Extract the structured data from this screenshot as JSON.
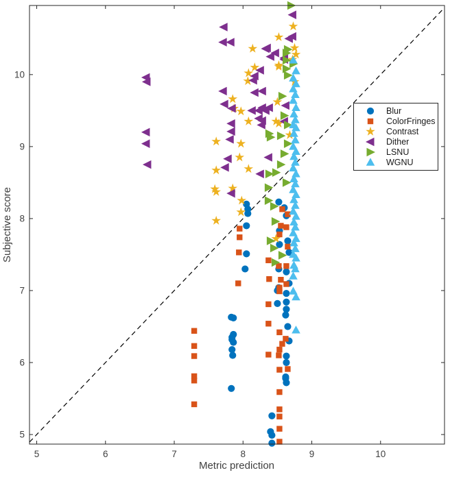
{
  "figure": {
    "background": "#ffffff",
    "axis_color": "#262626",
    "tick_label_color": "#3f3f3f",
    "reference_line_color": "#000000"
  },
  "chart_data": {
    "type": "scatter",
    "title": "",
    "xlabel": "Metric prediction",
    "ylabel": "Subjective score",
    "xlim": [
      4.895,
      10.93
    ],
    "ylim": [
      4.867,
      10.96
    ],
    "xticks": [
      5,
      6,
      7,
      8,
      9,
      10
    ],
    "yticks": [
      5,
      6,
      7,
      8,
      9,
      10
    ],
    "grid": false,
    "legend_position": "right-middle",
    "reference_line": {
      "style": "dashed",
      "equation": "y = x",
      "from": [
        4.895,
        4.895
      ],
      "to": [
        10.93,
        10.93
      ]
    },
    "series": [
      {
        "name": "Blur",
        "marker": "circle",
        "color": "#0072BD",
        "points": [
          [
            8.52,
            8.23
          ],
          [
            8.6,
            8.15
          ],
          [
            8.63,
            8.04
          ],
          [
            8.05,
            8.2
          ],
          [
            8.07,
            8.13
          ],
          [
            8.07,
            8.07
          ],
          [
            8.53,
            7.83
          ],
          [
            8.05,
            7.9
          ],
          [
            8.65,
            7.69
          ],
          [
            8.53,
            7.64
          ],
          [
            8.67,
            7.53
          ],
          [
            8.05,
            7.51
          ],
          [
            8.52,
            7.3
          ],
          [
            8.63,
            7.26
          ],
          [
            8.03,
            7.3
          ],
          [
            8.67,
            7.1
          ],
          [
            8.52,
            7.04
          ],
          [
            8.5,
            7.0
          ],
          [
            8.63,
            6.96
          ],
          [
            8.63,
            6.84
          ],
          [
            8.5,
            6.82
          ],
          [
            8.63,
            6.74
          ],
          [
            8.62,
            6.66
          ],
          [
            7.83,
            6.63
          ],
          [
            7.86,
            6.62
          ],
          [
            8.65,
            6.5
          ],
          [
            7.86,
            6.39
          ],
          [
            7.84,
            6.35
          ],
          [
            7.84,
            6.32
          ],
          [
            8.67,
            6.3
          ],
          [
            7.86,
            6.28
          ],
          [
            7.84,
            6.18
          ],
          [
            8.63,
            6.09
          ],
          [
            7.85,
            6.1
          ],
          [
            8.63,
            6.0
          ],
          [
            8.62,
            5.8
          ],
          [
            8.62,
            5.78
          ],
          [
            8.63,
            5.72
          ],
          [
            7.83,
            5.64
          ],
          [
            8.42,
            5.26
          ],
          [
            8.4,
            5.04
          ],
          [
            8.42,
            4.99
          ],
          [
            8.42,
            4.88
          ]
        ]
      },
      {
        "name": "ColorFringes",
        "marker": "square",
        "color": "#D95319",
        "points": [
          [
            7.95,
            7.86
          ],
          [
            7.95,
            7.74
          ],
          [
            7.94,
            7.53
          ],
          [
            7.93,
            7.1
          ],
          [
            8.57,
            8.13
          ],
          [
            8.65,
            8.06
          ],
          [
            8.55,
            7.9
          ],
          [
            8.63,
            7.88
          ],
          [
            8.53,
            7.78
          ],
          [
            8.65,
            7.61
          ],
          [
            8.37,
            7.42
          ],
          [
            8.52,
            7.34
          ],
          [
            8.63,
            7.34
          ],
          [
            8.38,
            7.16
          ],
          [
            8.55,
            7.15
          ],
          [
            8.63,
            7.09
          ],
          [
            8.53,
            7.04
          ],
          [
            8.53,
            6.99
          ],
          [
            8.37,
            6.81
          ],
          [
            8.37,
            6.54
          ],
          [
            8.53,
            6.42
          ],
          [
            8.62,
            6.33
          ],
          [
            8.57,
            6.26
          ],
          [
            8.53,
            6.18
          ],
          [
            8.37,
            6.11
          ],
          [
            8.52,
            6.1
          ],
          [
            8.65,
            5.91
          ],
          [
            8.53,
            5.9
          ],
          [
            8.53,
            5.59
          ],
          [
            8.53,
            5.35
          ],
          [
            8.53,
            5.25
          ],
          [
            8.53,
            5.08
          ],
          [
            8.53,
            4.9
          ],
          [
            7.29,
            6.44
          ],
          [
            7.29,
            6.23
          ],
          [
            7.29,
            6.09
          ],
          [
            7.29,
            5.81
          ],
          [
            7.29,
            5.75
          ],
          [
            7.29,
            5.42
          ]
        ]
      },
      {
        "name": "Contrast",
        "marker": "star",
        "color": "#EDB120",
        "points": [
          [
            8.73,
            10.67
          ],
          [
            8.52,
            10.52
          ],
          [
            8.14,
            10.36
          ],
          [
            8.75,
            10.37
          ],
          [
            8.77,
            10.28
          ],
          [
            8.72,
            10.21
          ],
          [
            8.52,
            10.13
          ],
          [
            8.17,
            10.1
          ],
          [
            8.08,
            10.02
          ],
          [
            8.07,
            9.91
          ],
          [
            8.75,
            9.9
          ],
          [
            7.85,
            9.66
          ],
          [
            8.5,
            9.62
          ],
          [
            7.87,
            9.53
          ],
          [
            7.97,
            9.49
          ],
          [
            8.08,
            9.35
          ],
          [
            8.48,
            9.35
          ],
          [
            8.52,
            9.32
          ],
          [
            8.68,
            9.16
          ],
          [
            7.61,
            9.07
          ],
          [
            7.97,
            9.04
          ],
          [
            7.95,
            8.85
          ],
          [
            8.08,
            8.69
          ],
          [
            7.61,
            8.67
          ],
          [
            7.59,
            8.41
          ],
          [
            7.85,
            8.42
          ],
          [
            7.61,
            8.37
          ],
          [
            7.98,
            8.25
          ],
          [
            7.97,
            8.09
          ],
          [
            7.61,
            7.97
          ],
          [
            8.48,
            7.72
          ],
          [
            8.52,
            10.11
          ]
        ]
      },
      {
        "name": "Dither",
        "marker": "triangle-left",
        "color": "#7E2F8E",
        "points": [
          [
            6.59,
            9.96
          ],
          [
            6.6,
            9.9
          ],
          [
            6.59,
            9.2
          ],
          [
            6.59,
            9.04
          ],
          [
            6.61,
            8.75
          ],
          [
            8.72,
            10.83
          ],
          [
            7.72,
            10.66
          ],
          [
            8.72,
            10.53
          ],
          [
            8.67,
            10.5
          ],
          [
            7.71,
            10.45
          ],
          [
            7.82,
            10.45
          ],
          [
            8.33,
            10.36
          ],
          [
            8.35,
            10.37
          ],
          [
            8.47,
            10.3
          ],
          [
            8.4,
            10.25
          ],
          [
            8.6,
            10.23
          ],
          [
            8.6,
            10.21
          ],
          [
            8.25,
            10.06
          ],
          [
            8.17,
            9.98
          ],
          [
            8.15,
            9.92
          ],
          [
            7.71,
            9.77
          ],
          [
            8.28,
            9.77
          ],
          [
            8.17,
            9.75
          ],
          [
            7.73,
            9.59
          ],
          [
            8.62,
            9.57
          ],
          [
            7.84,
            9.53
          ],
          [
            8.13,
            9.5
          ],
          [
            8.23,
            9.5
          ],
          [
            8.33,
            9.5
          ],
          [
            8.23,
            9.39
          ],
          [
            8.28,
            9.36
          ],
          [
            8.6,
            9.35
          ],
          [
            8.27,
            9.3
          ],
          [
            7.83,
            9.32
          ],
          [
            7.83,
            9.21
          ],
          [
            7.81,
            9.1
          ],
          [
            8.28,
            9.54
          ],
          [
            8.38,
            9.54
          ],
          [
            8.37,
            8.85
          ],
          [
            7.78,
            8.83
          ],
          [
            7.74,
            8.71
          ],
          [
            8.25,
            8.62
          ],
          [
            7.83,
            8.35
          ]
        ]
      },
      {
        "name": "LSNU",
        "marker": "triangle-right",
        "color": "#77AC30",
        "points": [
          [
            8.7,
            10.96
          ],
          [
            8.65,
            10.35
          ],
          [
            8.63,
            10.3
          ],
          [
            8.63,
            10.2
          ],
          [
            8.73,
            10.15
          ],
          [
            8.63,
            10.08
          ],
          [
            8.65,
            9.99
          ],
          [
            8.57,
            9.7
          ],
          [
            8.6,
            9.43
          ],
          [
            8.65,
            9.3
          ],
          [
            8.4,
            9.13
          ],
          [
            8.38,
            9.18
          ],
          [
            8.55,
            9.15
          ],
          [
            8.65,
            9.04
          ],
          [
            8.6,
            8.9
          ],
          [
            8.55,
            8.75
          ],
          [
            8.48,
            8.64
          ],
          [
            8.38,
            8.62
          ],
          [
            8.63,
            8.5
          ],
          [
            8.37,
            8.43
          ],
          [
            8.37,
            8.25
          ],
          [
            8.45,
            8.17
          ],
          [
            8.47,
            7.96
          ],
          [
            8.4,
            7.69
          ],
          [
            8.45,
            7.59
          ],
          [
            8.57,
            7.49
          ],
          [
            8.47,
            7.39
          ]
        ]
      },
      {
        "name": "WGNU",
        "marker": "triangle-up",
        "color": "#4DBEEE",
        "points": [
          [
            8.73,
            10.2
          ],
          [
            8.77,
            10.05
          ],
          [
            8.73,
            9.95
          ],
          [
            8.77,
            9.87
          ],
          [
            8.73,
            9.8
          ],
          [
            8.76,
            9.72
          ],
          [
            8.73,
            9.64
          ],
          [
            8.77,
            9.54
          ],
          [
            8.74,
            9.45
          ],
          [
            8.76,
            9.37
          ],
          [
            8.73,
            9.3
          ],
          [
            8.77,
            9.26
          ],
          [
            8.74,
            9.18
          ],
          [
            8.76,
            9.09
          ],
          [
            8.73,
            9.0
          ],
          [
            8.77,
            8.93
          ],
          [
            8.74,
            8.86
          ],
          [
            8.76,
            8.78
          ],
          [
            8.73,
            8.7
          ],
          [
            8.77,
            8.62
          ],
          [
            8.74,
            8.55
          ],
          [
            8.76,
            8.48
          ],
          [
            8.73,
            8.4
          ],
          [
            8.77,
            8.33
          ],
          [
            8.74,
            8.26
          ],
          [
            8.76,
            8.18
          ],
          [
            8.73,
            8.1
          ],
          [
            8.77,
            8.03
          ],
          [
            8.74,
            7.95
          ],
          [
            8.76,
            7.88
          ],
          [
            8.73,
            7.8
          ],
          [
            8.77,
            7.72
          ],
          [
            8.74,
            7.66
          ],
          [
            8.76,
            7.58
          ],
          [
            8.73,
            7.5
          ],
          [
            8.77,
            7.45
          ],
          [
            8.74,
            7.35
          ],
          [
            8.76,
            7.3
          ],
          [
            8.73,
            7.2
          ],
          [
            8.73,
            6.99
          ],
          [
            8.77,
            6.91
          ],
          [
            8.77,
            6.45
          ]
        ]
      }
    ]
  }
}
